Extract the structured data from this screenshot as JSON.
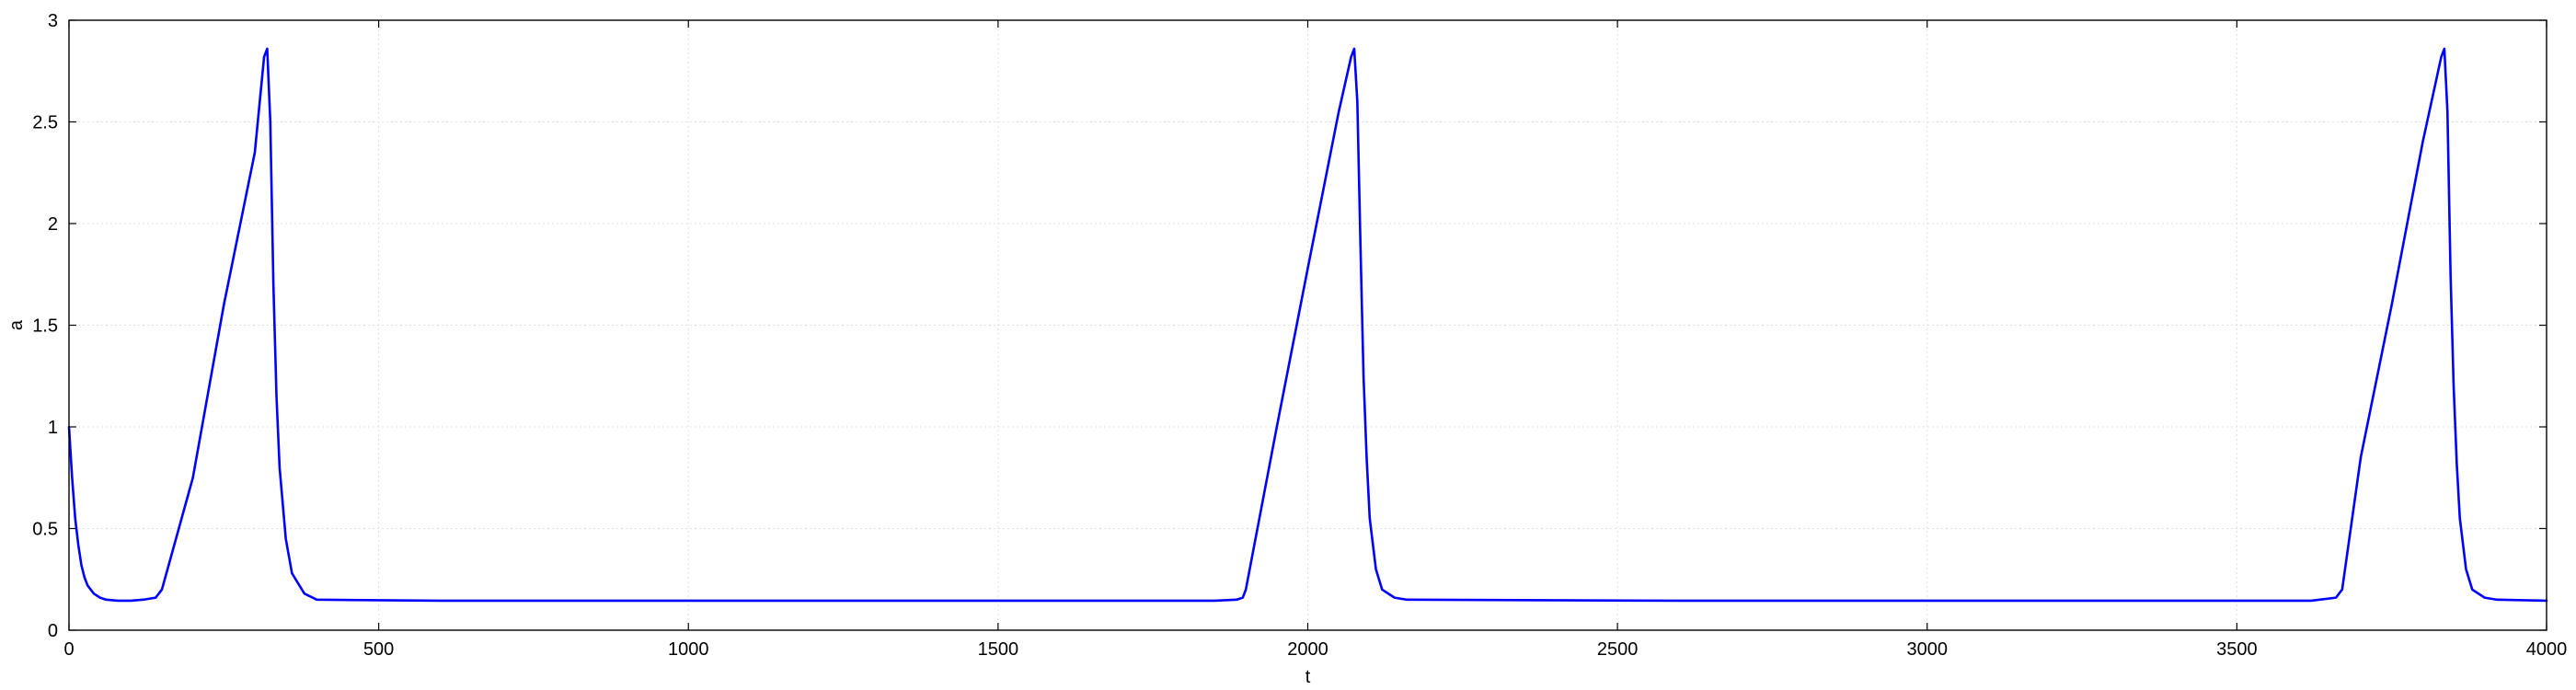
{
  "chart_data": {
    "type": "line",
    "title": "",
    "xlabel": "t",
    "ylabel": "a",
    "xlim": [
      0,
      4000
    ],
    "ylim": [
      0,
      3
    ],
    "grid": true,
    "legend": "none",
    "x_ticks": [
      "0",
      "500",
      "1000",
      "1500",
      "2000",
      "2500",
      "3000",
      "3500",
      "4000"
    ],
    "y_ticks": [
      "0",
      "0.5",
      "1",
      "1.5",
      "2",
      "2.5",
      "3"
    ],
    "series": [
      {
        "color": "#0000ff",
        "x": [
          0,
          5,
          10,
          15,
          20,
          25,
          30,
          40,
          50,
          60,
          80,
          100,
          120,
          140,
          150,
          160,
          200,
          250,
          300,
          315,
          320,
          325,
          330,
          335,
          340,
          350,
          360,
          380,
          400,
          600,
          1000,
          1500,
          1850,
          1885,
          1895,
          1900,
          1950,
          2000,
          2050,
          2070,
          2075,
          2080,
          2085,
          2090,
          2095,
          2100,
          2110,
          2120,
          2140,
          2160,
          2600,
          3000,
          3500,
          3620,
          3660,
          3670,
          3700,
          3750,
          3800,
          3830,
          3835,
          3840,
          3845,
          3850,
          3855,
          3860,
          3870,
          3880,
          3900,
          3920,
          4000
        ],
        "y": [
          1.0,
          0.75,
          0.55,
          0.42,
          0.32,
          0.26,
          0.22,
          0.18,
          0.16,
          0.15,
          0.145,
          0.145,
          0.15,
          0.16,
          0.2,
          0.31,
          0.75,
          1.6,
          2.35,
          2.82,
          2.86,
          2.5,
          1.7,
          1.15,
          0.8,
          0.45,
          0.28,
          0.18,
          0.15,
          0.145,
          0.145,
          0.145,
          0.145,
          0.15,
          0.16,
          0.2,
          1.0,
          1.78,
          2.55,
          2.82,
          2.86,
          2.6,
          1.9,
          1.25,
          0.85,
          0.55,
          0.3,
          0.2,
          0.16,
          0.15,
          0.145,
          0.145,
          0.145,
          0.145,
          0.16,
          0.2,
          0.85,
          1.6,
          2.4,
          2.82,
          2.86,
          2.55,
          1.75,
          1.2,
          0.82,
          0.55,
          0.3,
          0.2,
          0.16,
          0.15,
          0.145
        ]
      }
    ]
  }
}
